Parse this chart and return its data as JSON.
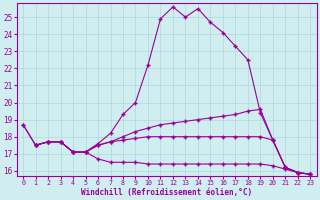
{
  "title": "",
  "xlabel": "Windchill (Refroidissement éolien,°C)",
  "ylabel": "",
  "bg_color": "#d0eef0",
  "line_color": "#990099",
  "grid_color": "#b0d8d8",
  "xlim": [
    -0.5,
    23.5
  ],
  "ylim": [
    15.7,
    25.8
  ],
  "yticks": [
    16,
    17,
    18,
    19,
    20,
    21,
    22,
    23,
    24,
    25
  ],
  "xticks": [
    0,
    1,
    2,
    3,
    4,
    5,
    6,
    7,
    8,
    9,
    10,
    11,
    12,
    13,
    14,
    15,
    16,
    17,
    18,
    19,
    20,
    21,
    22,
    23
  ],
  "curve1_x": [
    0,
    1,
    2,
    3,
    4,
    5,
    6,
    7,
    8,
    9,
    10,
    11,
    12,
    13,
    14,
    15,
    16,
    17,
    18,
    19,
    20,
    21,
    22,
    23
  ],
  "curve1_y": [
    18.7,
    17.5,
    17.7,
    17.7,
    17.1,
    17.1,
    17.6,
    18.2,
    19.3,
    20.0,
    22.2,
    24.9,
    25.6,
    25.0,
    25.5,
    24.7,
    24.1,
    23.3,
    22.5,
    19.4,
    17.8,
    16.2,
    15.9,
    15.8
  ],
  "curve2_x": [
    0,
    1,
    2,
    3,
    4,
    5,
    6,
    7,
    8,
    9,
    10,
    11,
    12,
    13,
    14,
    15,
    16,
    17,
    18,
    19,
    20,
    21,
    22,
    23
  ],
  "curve2_y": [
    18.7,
    17.5,
    17.7,
    17.7,
    17.1,
    17.1,
    17.5,
    17.7,
    18.0,
    18.3,
    18.5,
    18.7,
    18.8,
    18.9,
    19.0,
    19.1,
    19.2,
    19.3,
    19.5,
    19.6,
    17.8,
    16.2,
    15.9,
    15.8
  ],
  "curve3_x": [
    1,
    2,
    3,
    4,
    5,
    6,
    7,
    8,
    9,
    10,
    11,
    12,
    13,
    14,
    15,
    16,
    17,
    18,
    19,
    20,
    21,
    22,
    23
  ],
  "curve3_y": [
    17.5,
    17.7,
    17.7,
    17.1,
    17.1,
    16.7,
    16.5,
    16.5,
    16.5,
    16.4,
    16.4,
    16.4,
    16.4,
    16.4,
    16.4,
    16.4,
    16.4,
    16.4,
    16.4,
    16.3,
    16.1,
    15.9,
    15.8
  ],
  "curve4_x": [
    1,
    2,
    3,
    4,
    5,
    6,
    7,
    8,
    9,
    10,
    11,
    12,
    13,
    14,
    15,
    16,
    17,
    18,
    19,
    20,
    21,
    22,
    23
  ],
  "curve4_y": [
    17.5,
    17.7,
    17.7,
    17.1,
    17.1,
    17.5,
    17.7,
    17.8,
    17.9,
    18.0,
    18.0,
    18.0,
    18.0,
    18.0,
    18.0,
    18.0,
    18.0,
    18.0,
    18.0,
    17.8,
    16.2,
    15.9,
    15.8
  ]
}
